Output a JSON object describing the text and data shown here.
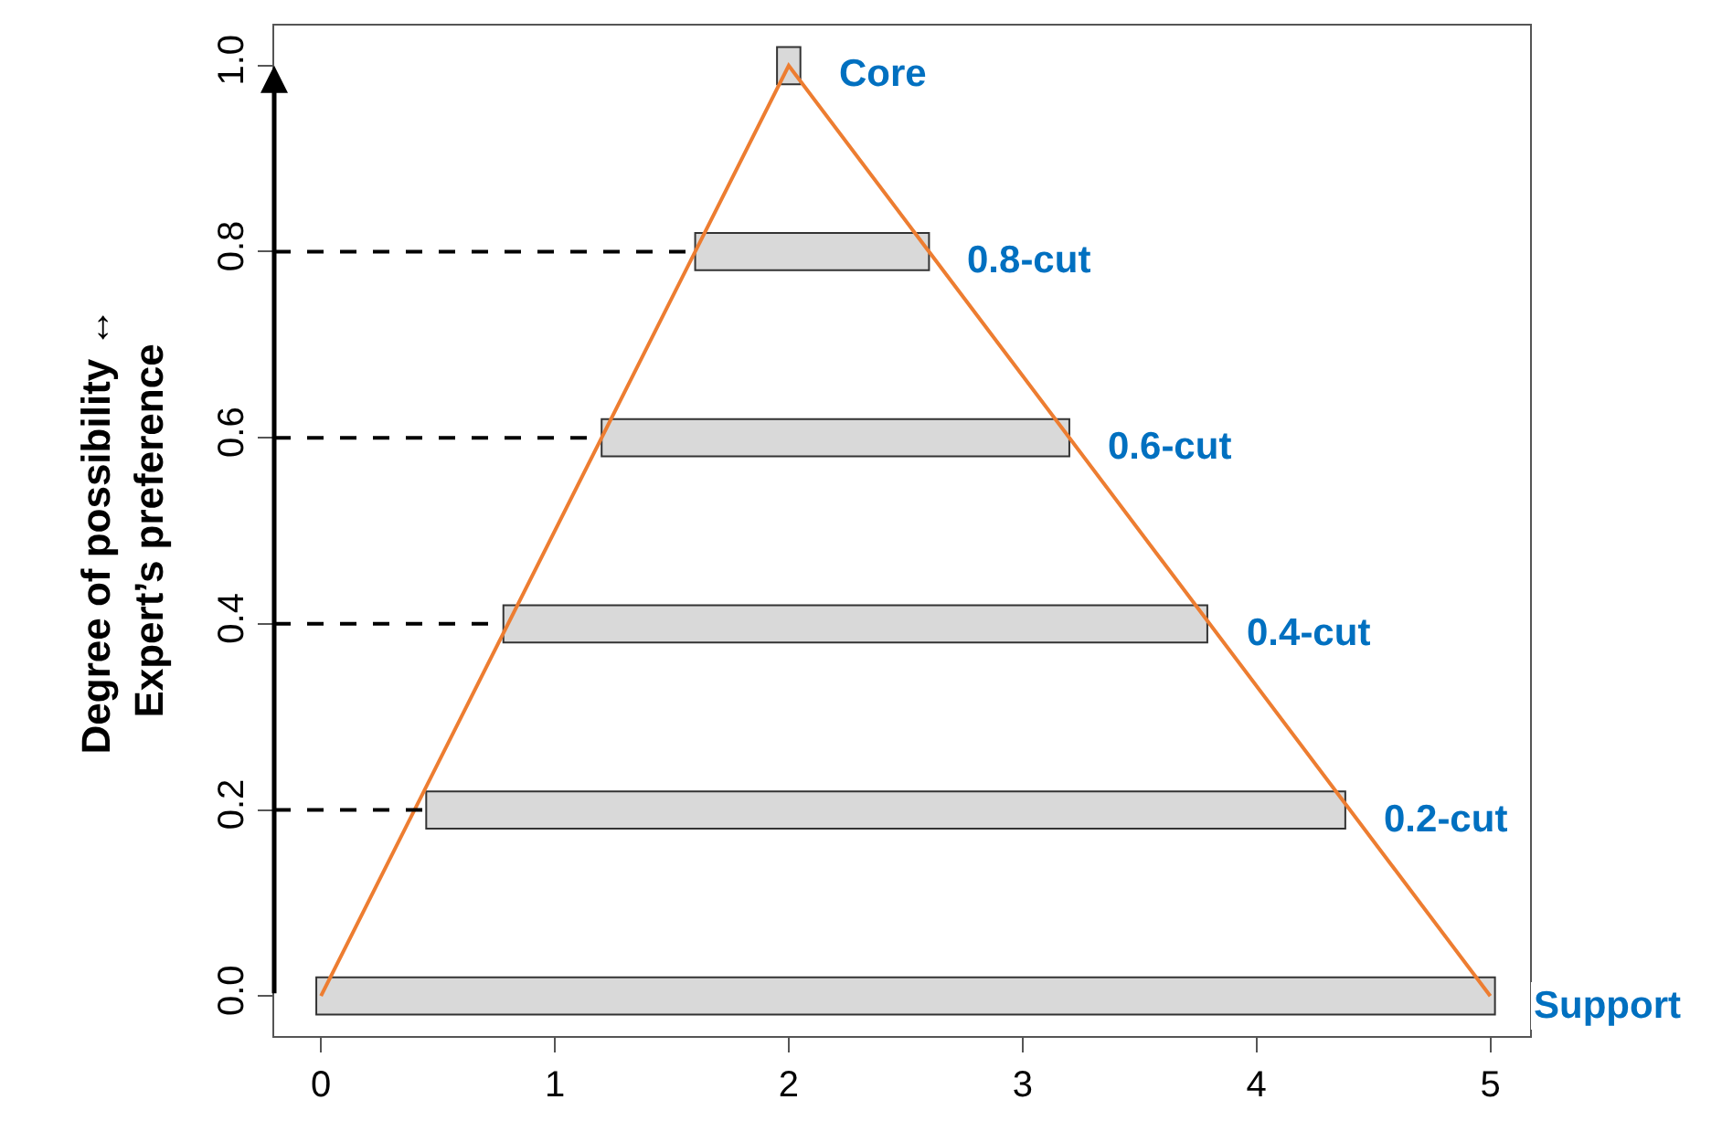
{
  "chart_data": {
    "type": "bar",
    "orientation": "horizontal",
    "ylabel": "Degree of possibility ↔\nExpert’s preference",
    "series": [
      {
        "color": "#d9d9d9",
        "x": [
          0,
          0.2,
          0.4,
          0.6,
          0.8,
          1.0
        ],
        "base": [
          -0.02,
          0.45,
          0.78,
          1.2,
          1.6,
          1.95
        ],
        "values": [
          5.04,
          3.93,
          3.01,
          2.0,
          1.0,
          0.1
        ]
      },
      {
        "type": "line",
        "color": "#ed7d31",
        "x": [
          0,
          1,
          0
        ],
        "values": [
          0,
          2,
          5
        ]
      }
    ],
    "xlim": [
      -0.2,
      5.17
    ],
    "ylim": [
      -0.043,
      1.043
    ],
    "xticks": [
      0,
      1,
      2,
      3,
      4,
      5
    ],
    "yticks": [
      {
        "value": 0,
        "label": "0.0"
      },
      {
        "value": 0.2,
        "label": "0.2"
      },
      {
        "value": 0.4,
        "label": "0.4"
      },
      {
        "value": 0.6,
        "label": "0.6"
      },
      {
        "value": 0.8,
        "label": "0.8"
      },
      {
        "value": 1.0,
        "label": "1.0"
      }
    ],
    "ref_lines": [
      {
        "axis": "y",
        "value": 0.2,
        "color": "#000000",
        "line_style": "dashed"
      },
      {
        "axis": "y",
        "value": 0.4,
        "color": "#000000",
        "line_style": "dashed"
      },
      {
        "axis": "y",
        "value": 0.6,
        "color": "#000000",
        "line_style": "dashed"
      },
      {
        "axis": "y",
        "value": 0.8,
        "color": "#000000",
        "line_style": "dashed"
      }
    ],
    "annotations": [
      "Core",
      "0.8-cut",
      "0.6-cut",
      "0.4-cut",
      "0.2-cut",
      "Support"
    ]
  }
}
